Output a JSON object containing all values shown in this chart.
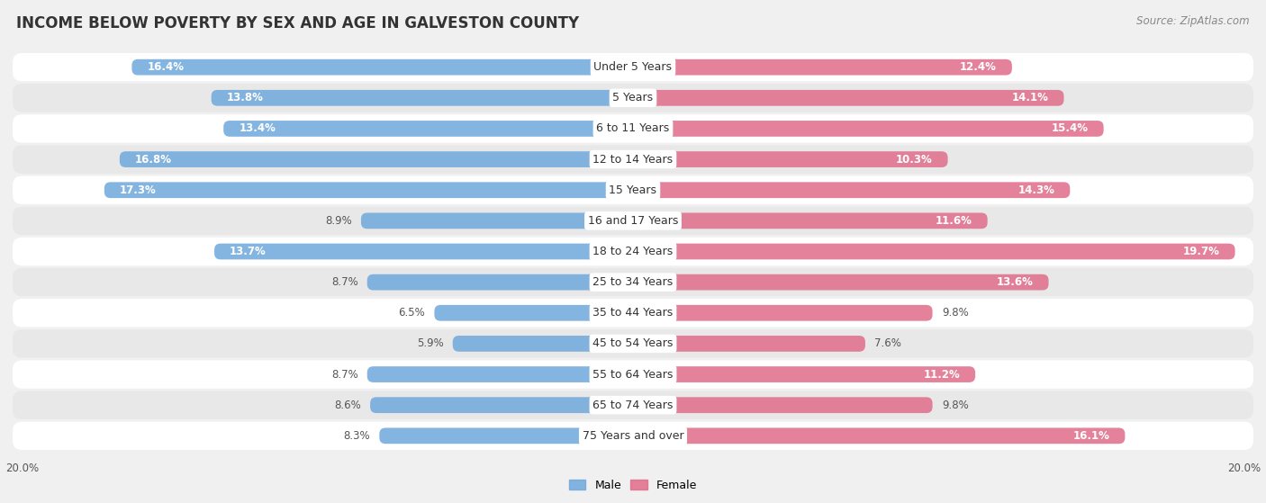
{
  "title": "INCOME BELOW POVERTY BY SEX AND AGE IN GALVESTON COUNTY",
  "source": "Source: ZipAtlas.com",
  "categories": [
    "Under 5 Years",
    "5 Years",
    "6 to 11 Years",
    "12 to 14 Years",
    "15 Years",
    "16 and 17 Years",
    "18 to 24 Years",
    "25 to 34 Years",
    "35 to 44 Years",
    "45 to 54 Years",
    "55 to 64 Years",
    "65 to 74 Years",
    "75 Years and over"
  ],
  "male": [
    16.4,
    13.8,
    13.4,
    16.8,
    17.3,
    8.9,
    13.7,
    8.7,
    6.5,
    5.9,
    8.7,
    8.6,
    8.3
  ],
  "female": [
    12.4,
    14.1,
    15.4,
    10.3,
    14.3,
    11.6,
    19.7,
    13.6,
    9.8,
    7.6,
    11.2,
    9.8,
    16.1
  ],
  "male_color": "#6fa8dc",
  "female_color": "#e06c8a",
  "male_label": "Male",
  "female_label": "Female",
  "xlim": 20.0,
  "background_color": "#f0f0f0",
  "row_color_light": "#ffffff",
  "row_color_dark": "#e8e8e8",
  "title_fontsize": 12,
  "source_fontsize": 8.5,
  "label_fontsize": 9,
  "bar_label_fontsize": 8.5,
  "inside_label_threshold": 10.0
}
